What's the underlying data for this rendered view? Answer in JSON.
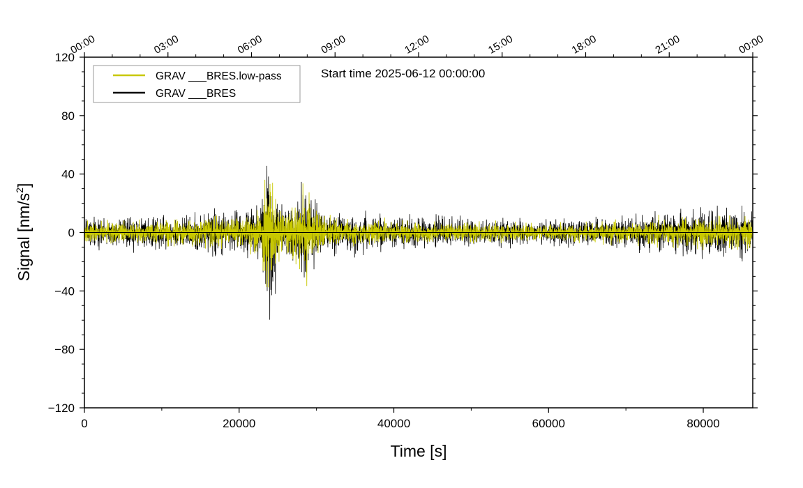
{
  "chart_data": {
    "type": "line",
    "xlabel": "Time [s]",
    "ylabel": "Signal [nm/s",
    "ylabel_superscript": "2",
    "ylabel_suffix": "]",
    "xlim": [
      0,
      86400
    ],
    "ylim": [
      -120,
      120
    ],
    "x_ticks": [
      0,
      20000,
      40000,
      60000,
      80000
    ],
    "x_tick_labels": [
      "0",
      "20000",
      "40000",
      "60000",
      "80000"
    ],
    "x_minor_step": 10000,
    "y_ticks": [
      -120,
      -80,
      -40,
      0,
      40,
      80,
      120
    ],
    "y_tick_labels": [
      "−120",
      "−80",
      "−40",
      "0",
      "40",
      "80",
      "120"
    ],
    "y_minor_step": 10,
    "top_axis": {
      "ticks": [
        0,
        10800,
        21600,
        32400,
        43200,
        54000,
        64800,
        75600,
        86400
      ],
      "labels": [
        "00:00",
        "03:00",
        "06:00",
        "09:00",
        "12:00",
        "15:00",
        "18:00",
        "21:00",
        "00:00"
      ]
    },
    "annotation": "Start time 2025-06-12 00:00:00",
    "grid": false,
    "legend_position": "top-left",
    "series": [
      {
        "name": "GRAV ___BRES",
        "color": "#000000",
        "envelope": {
          "x": [
            0,
            3000,
            8000,
            14000,
            16000,
            17000,
            18000,
            20000,
            22000,
            23000,
            23800,
            24300,
            25000,
            26000,
            27000,
            28000,
            28700,
            29500,
            31000,
            33000,
            40000,
            50000,
            60000,
            70000,
            75000,
            80000,
            86400
          ],
          "amplitude": [
            12,
            12,
            12,
            13,
            15,
            20,
            14,
            15,
            18,
            30,
            57,
            48,
            28,
            20,
            24,
            36,
            42,
            22,
            18,
            15,
            12,
            10,
            9,
            11,
            15,
            17,
            18
          ]
        }
      },
      {
        "name": "GRAV ___BRES.low-pass",
        "color": "#c8c800",
        "envelope": {
          "x": [
            0,
            3000,
            8000,
            14000,
            16000,
            17000,
            18000,
            20000,
            22000,
            23000,
            23800,
            24300,
            25000,
            26000,
            27000,
            28000,
            28700,
            29500,
            31000,
            33000,
            40000,
            50000,
            60000,
            70000,
            75000,
            80000,
            86400
          ],
          "amplitude": [
            8,
            8,
            8,
            9,
            10,
            14,
            10,
            10,
            13,
            24,
            52,
            42,
            22,
            15,
            18,
            30,
            35,
            17,
            13,
            10,
            8,
            7,
            6,
            8,
            10,
            11,
            12
          ]
        }
      }
    ]
  }
}
